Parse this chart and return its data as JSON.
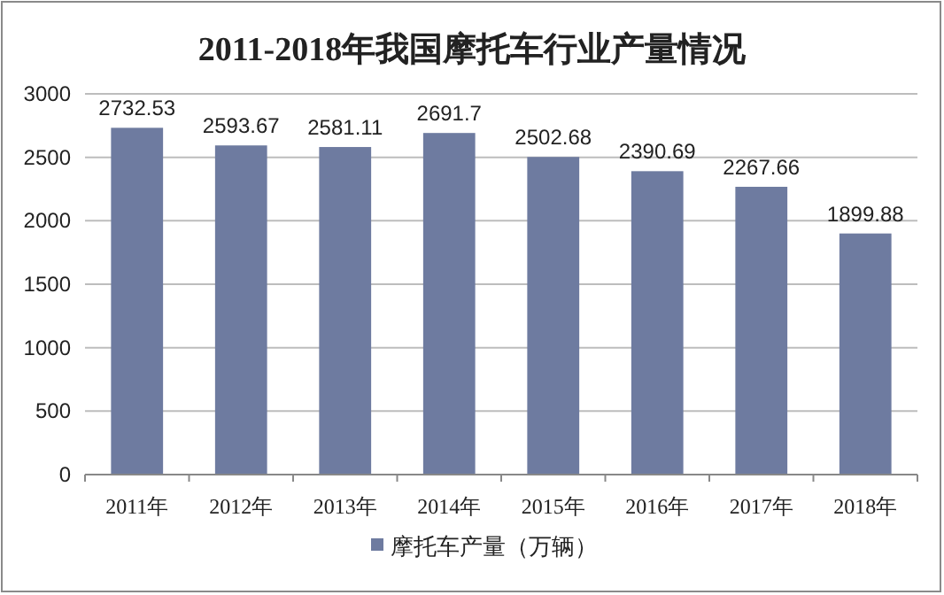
{
  "chart_data": {
    "type": "bar",
    "title": "2011-2018年我国摩托车行业产量情况",
    "categories": [
      "2011年",
      "2012年",
      "2013年",
      "2014年",
      "2015年",
      "2016年",
      "2017年",
      "2018年"
    ],
    "series": [
      {
        "name": "摩托车产量（万辆）",
        "color": "#6e7ba0",
        "values": [
          2732.53,
          2593.67,
          2581.11,
          2691.7,
          2502.68,
          2390.69,
          2267.66,
          1899.88
        ]
      }
    ],
    "ylim": [
      0,
      3000
    ],
    "yticks": [
      0,
      500,
      1000,
      1500,
      2000,
      2500,
      3000
    ],
    "grid": "y",
    "legend": "bottom",
    "data_labels": true
  }
}
